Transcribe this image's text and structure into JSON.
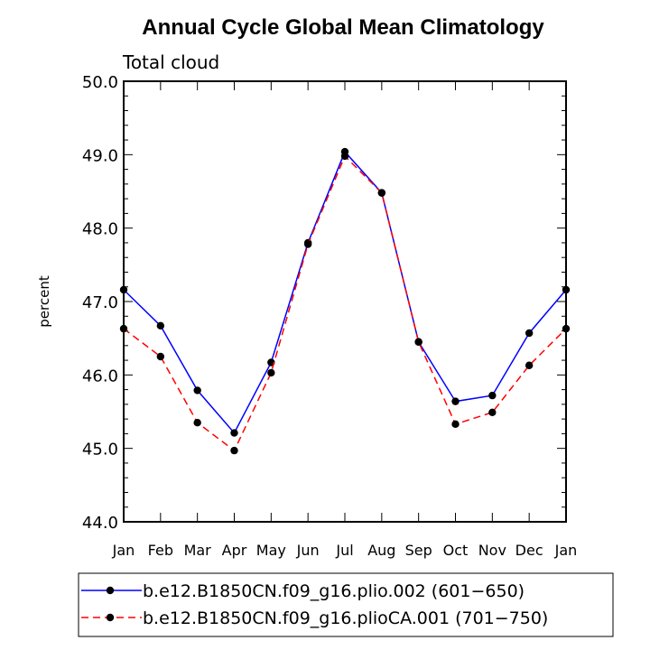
{
  "chart_data": {
    "type": "line",
    "title": "Annual Cycle Global Mean Climatology",
    "subtitle": "Total cloud",
    "xlabel": "",
    "ylabel": "percent",
    "ylim": [
      44.0,
      50.0
    ],
    "yticks": [
      "44.0",
      "45.0",
      "46.0",
      "47.0",
      "48.0",
      "49.0",
      "50.0"
    ],
    "categories": [
      "Jan",
      "Feb",
      "Mar",
      "Apr",
      "May",
      "Jun",
      "Jul",
      "Aug",
      "Sep",
      "Oct",
      "Nov",
      "Dec",
      "Jan"
    ],
    "series": [
      {
        "name": "b.e12.B1850CN.f09_g16.plio.002 (601−650)",
        "color": "#0000ff",
        "dash": "solid",
        "values": [
          47.16,
          46.67,
          45.79,
          45.21,
          46.17,
          47.8,
          49.04,
          48.48,
          46.45,
          45.64,
          45.72,
          46.57,
          47.16
        ]
      },
      {
        "name": "b.e12.B1850CN.f09_g16.plioCA.001 (701−750)",
        "color": "#ff0000",
        "dash": "dashed",
        "values": [
          46.63,
          46.25,
          45.35,
          44.97,
          46.03,
          47.78,
          48.98,
          48.48,
          46.45,
          45.33,
          45.49,
          46.13,
          46.63
        ]
      }
    ],
    "legend_position": "bottom"
  }
}
